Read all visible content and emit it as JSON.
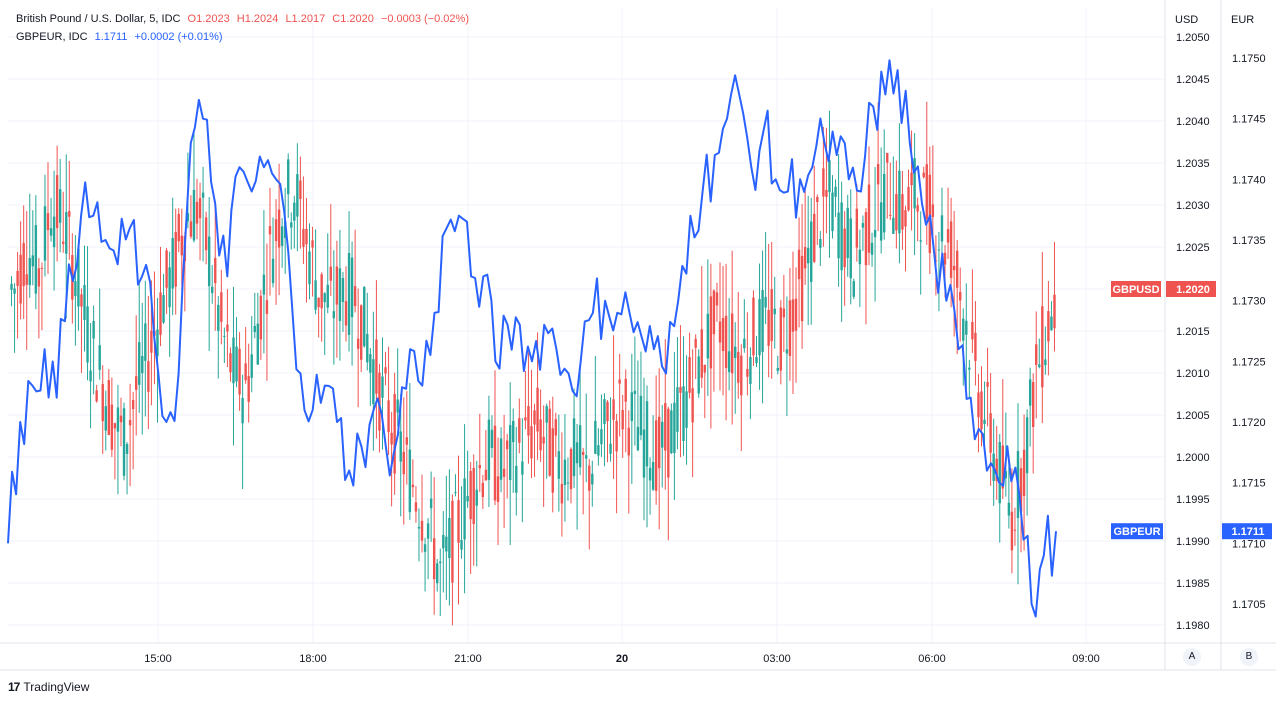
{
  "legend": {
    "symbol1": "British Pound / U.S. Dollar, 5, IDC",
    "o": "O1.2023",
    "h": "H1.2024",
    "l": "L1.2017",
    "c": "C1.2020",
    "chg": "−0.0003 (−0.02%)",
    "symbol2": "GBPEUR, IDC",
    "val2": "1.1711",
    "chg2": "+0.0002 (+0.01%)"
  },
  "axes": {
    "usd_label": "USD",
    "eur_label": "EUR",
    "usd_ticks": [
      "1.2050",
      "1.2045",
      "1.2040",
      "1.2035",
      "1.2030",
      "1.2025",
      "1.2020",
      "1.2015",
      "1.2010",
      "1.2005",
      "1.2000",
      "1.1995",
      "1.1990",
      "1.1985",
      "1.1980"
    ],
    "eur_ticks": [
      "1.1750",
      "1.1745",
      "1.1740",
      "1.1735",
      "1.1730",
      "1.1725",
      "1.1720",
      "1.1715",
      "1.1710",
      "1.1705"
    ],
    "time_ticks": [
      "15:00",
      "18:00",
      "21:00",
      "20",
      "03:00",
      "06:00",
      "09:00"
    ]
  },
  "tags": {
    "gbpusd_name": "GBPUSD",
    "gbpusd_value": "1.2020",
    "gbpeur_name": "GBPEUR",
    "gbpeur_value": "1.1711"
  },
  "scale_buttons": {
    "a": "A",
    "b": "B"
  },
  "footer": {
    "logo": "17",
    "brand": "TradingView"
  },
  "colors": {
    "up": "#26a69a",
    "down": "#ef5350",
    "line": "#2962ff",
    "grid": "#f0f3fa"
  },
  "chart_data": {
    "type": "candlestick+line",
    "series": [
      {
        "name": "GBPUSD",
        "axis": "USD",
        "kind": "candlestick",
        "closes": [
          1.202,
          1.2025,
          1.2022,
          1.203,
          1.2028,
          1.2022,
          1.2015,
          1.201,
          1.2005,
          1.2002,
          1.2008,
          1.2012,
          1.2018,
          1.2022,
          1.2028,
          1.203,
          1.2024,
          1.2015,
          1.201,
          1.2008,
          1.2016,
          1.2024,
          1.203,
          1.2032,
          1.2026,
          1.202,
          1.2018,
          1.202,
          1.2019,
          1.2014,
          1.2008,
          1.2004,
          1.2,
          1.1996,
          1.1992,
          1.1986,
          1.199,
          1.1994,
          1.1998,
          1.2,
          1.1998,
          1.2,
          1.2002,
          1.2004,
          1.2001,
          1.1999,
          1.2,
          1.1998,
          1.2001,
          1.2004,
          1.2006,
          1.2004,
          1.2002,
          1.2,
          1.2003,
          1.2006,
          1.201,
          1.2014,
          1.2016,
          1.2013,
          1.2012,
          1.2015,
          1.2016,
          1.2014,
          1.2018,
          1.2022,
          1.2028,
          1.2031,
          1.2027,
          1.2024,
          1.2027,
          1.203,
          1.2032,
          1.2029,
          1.2031,
          1.203,
          1.2027,
          1.2025,
          1.2018,
          1.201,
          1.2004,
          1.1998,
          1.1993,
          1.2,
          1.201,
          1.2016,
          1.202
        ]
      },
      {
        "name": "GBPEUR",
        "axis": "EUR",
        "kind": "line",
        "values": [
          1.171,
          1.172,
          1.1723,
          1.1726,
          1.1722,
          1.1733,
          1.1737,
          1.1737,
          1.1735,
          1.1733,
          1.1736,
          1.1732,
          1.1727,
          1.172,
          1.1724,
          1.1743,
          1.1745,
          1.1738,
          1.1732,
          1.1741,
          1.1739,
          1.1741,
          1.174,
          1.1734,
          1.1724,
          1.1721,
          1.1723,
          1.172,
          1.1716,
          1.1718,
          1.1721,
          1.1718,
          1.1719,
          1.1726,
          1.1723,
          1.1729,
          1.1736,
          1.1737,
          1.1732,
          1.1732,
          1.1725,
          1.1728,
          1.1728,
          1.1725,
          1.1728,
          1.1726,
          1.1724,
          1.1725,
          1.1729,
          1.173,
          1.1729,
          1.1729,
          1.1727,
          1.1726,
          1.1724,
          1.173,
          1.1737,
          1.1739,
          1.1742,
          1.1745,
          1.1747,
          1.1741,
          1.1744,
          1.174,
          1.1739,
          1.174,
          1.1741,
          1.1743,
          1.1742,
          1.174,
          1.1739,
          1.1746,
          1.1747,
          1.1749,
          1.1743,
          1.1738,
          1.1734,
          1.173,
          1.1726,
          1.1722,
          1.1719,
          1.1716,
          1.1718,
          1.1714,
          1.1705,
          1.1709,
          1.1711
        ]
      }
    ],
    "usd_range": [
      1.1978,
      1.2052
    ],
    "eur_range": [
      1.1702,
      1.1752
    ],
    "x_ticks": [
      "15:00",
      "18:00",
      "21:00",
      "20",
      "03:00",
      "06:00",
      "09:00"
    ],
    "grid": true
  }
}
